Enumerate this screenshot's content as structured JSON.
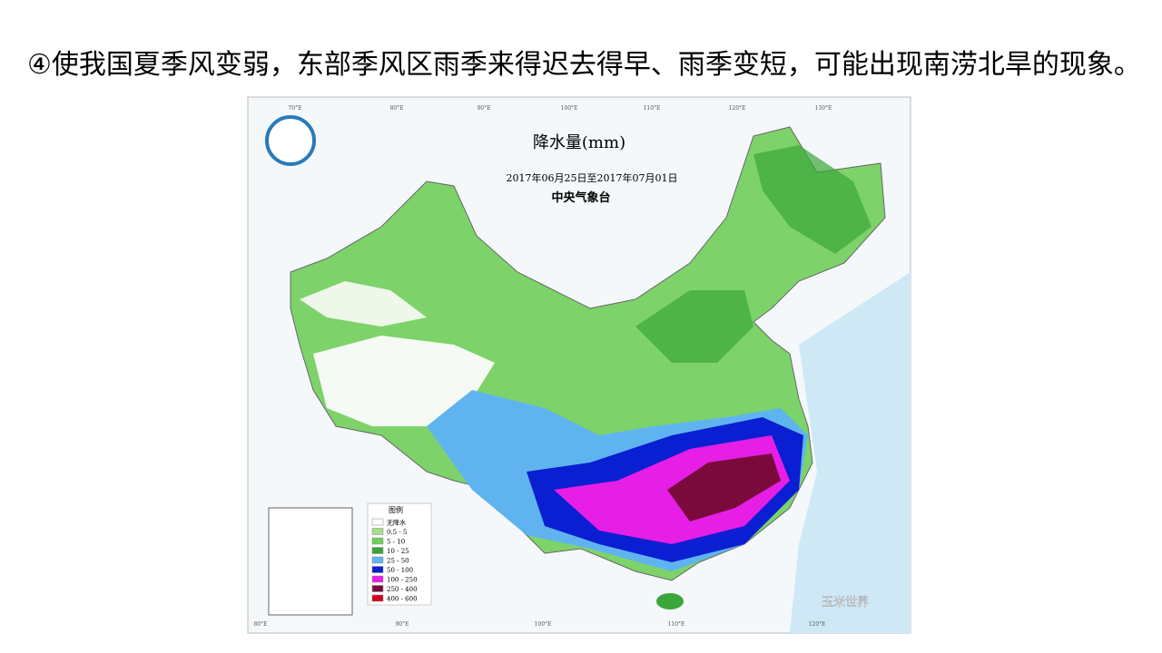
{
  "text": "④使我国夏季风变弱，东部季风区雨季来得迟去得早、雨季变短，可能出现南涝北旱的现象。",
  "map": {
    "title": "降水量(mm)",
    "date_range": "2017年06月25日至2017年07月01日",
    "issuer": "中央气象台",
    "legend": {
      "title": "图例",
      "items": [
        {
          "label": "无降水",
          "color": "#ffffff"
        },
        {
          "label": "0.5 - 5",
          "color": "#a6e08a"
        },
        {
          "label": "5 - 10",
          "color": "#6fcf5a"
        },
        {
          "label": "10 - 25",
          "color": "#3aa63a"
        },
        {
          "label": "25 - 50",
          "color": "#5fb4f0"
        },
        {
          "label": "50 - 100",
          "color": "#0a1ed2"
        },
        {
          "label": "100 - 250",
          "color": "#e61ee6"
        },
        {
          "label": "250 - 400",
          "color": "#7a0a3c"
        },
        {
          "label": "400 - 600",
          "color": "#d2001e"
        }
      ]
    },
    "longitude_labels_top": [
      "70°E",
      "80°E",
      "90°E",
      "100°E",
      "110°E",
      "120°E",
      "130°E"
    ],
    "longitude_labels_bottom": [
      "80°E",
      "90°E",
      "100°E",
      "110°E",
      "120°E"
    ],
    "watermark": "玉米世界"
  }
}
